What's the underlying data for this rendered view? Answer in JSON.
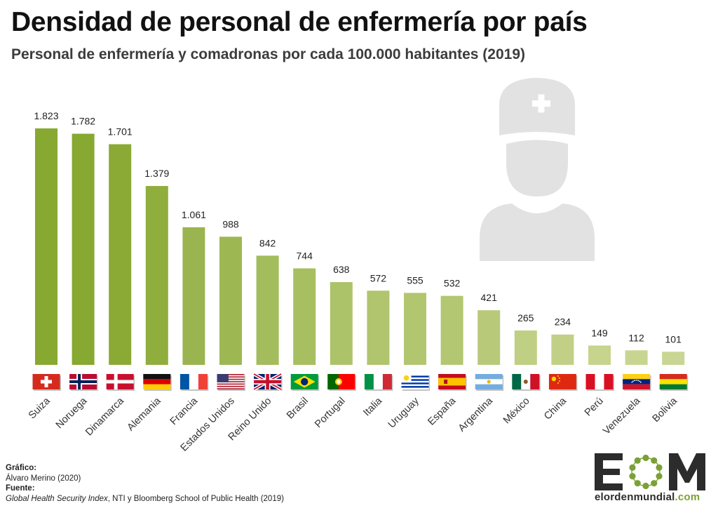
{
  "title": "Densidad de personal de enfermería por país",
  "subtitle": "Personal de enfermería y comadronas por cada 100.000 habitantes (2019)",
  "chart_data": {
    "type": "bar",
    "title": "Densidad de personal de enfermería por país",
    "subtitle": "Personal de enfermería y comadronas por cada 100.000 habitantes (2019)",
    "xlabel": "",
    "ylabel": "",
    "ylim": [
      0,
      1900
    ],
    "grid": false,
    "categories": [
      "Suiza",
      "Noruega",
      "Dinamarca",
      "Alemania",
      "Francia",
      "Estados Unidos",
      "Reino Unido",
      "Brasil",
      "Portugal",
      "Italia",
      "Uruguay",
      "España",
      "Argentina",
      "México",
      "China",
      "Perú",
      "Venezuela",
      "Bolivia"
    ],
    "values": [
      1823,
      1782,
      1701,
      1379,
      1061,
      988,
      842,
      744,
      638,
      572,
      555,
      532,
      421,
      265,
      234,
      149,
      112,
      101
    ],
    "value_labels": [
      "1.823",
      "1.782",
      "1.701",
      "1.379",
      "1.061",
      "988",
      "842",
      "744",
      "638",
      "572",
      "555",
      "532",
      "421",
      "265",
      "234",
      "149",
      "112",
      "101"
    ],
    "bar_colors": [
      "#87a831",
      "#87a831",
      "#8aaa35",
      "#8fae3d",
      "#9ab54f",
      "#9db853",
      "#a3bc5c",
      "#a7bf61",
      "#adc36a",
      "#b0c56e",
      "#b2c670",
      "#b3c772",
      "#b8ca79",
      "#bfcf83",
      "#c1d086",
      "#c6d48d",
      "#c8d590",
      "#c9d592"
    ],
    "flags": [
      "switzerland-flag",
      "norway-flag",
      "denmark-flag",
      "germany-flag",
      "france-flag",
      "usa-flag",
      "uk-flag",
      "brazil-flag",
      "portugal-flag",
      "italy-flag",
      "uruguay-flag",
      "spain-flag",
      "argentina-flag",
      "mexico-flag",
      "china-flag",
      "peru-flag",
      "venezuela-flag",
      "bolivia-flag"
    ]
  },
  "decoration": {
    "icon": "nurse-icon",
    "color": "#e2e2e2"
  },
  "credits": {
    "grafico_label": "Gráfico:",
    "grafico_value": "Álvaro Merino (2020)",
    "fuente_label": "Fuente:",
    "fuente_italic": "Global Health Security Index",
    "fuente_rest": ", NTI y Bloomberg School of Public Health (2019)"
  },
  "logo": {
    "icon": "eom-logo-icon",
    "letters": "EOM",
    "text_name": "elordenmundial",
    "text_domain": ".com",
    "color": "#2c2c2c",
    "accent": "#7da036"
  }
}
